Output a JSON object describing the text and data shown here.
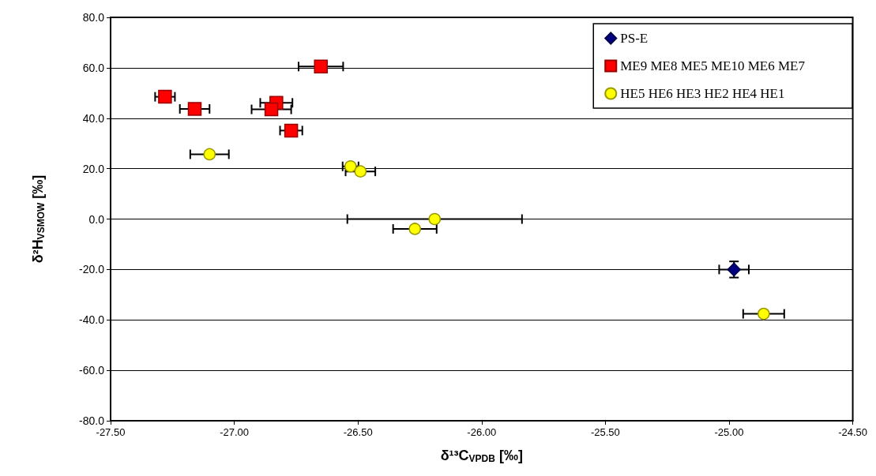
{
  "chart_data": {
    "type": "scatter",
    "xlabel": "δ¹³C$_{VPDB}$ [‰]",
    "ylabel": "δ²H$_{VSMOW}$ [‰]",
    "xlim": [
      -27.5,
      -24.5
    ],
    "xticks": [
      {
        "value": -27.5,
        "label": "-27.50"
      },
      {
        "value": -27,
        "label": "-27.00"
      },
      {
        "value": -26.5,
        "label": "-26.50"
      },
      {
        "value": -26,
        "label": "-26.00"
      },
      {
        "value": -25.5,
        "label": "-25.50"
      },
      {
        "value": -25,
        "label": "-25.00"
      },
      {
        "value": -24.5,
        "label": "-24.50"
      }
    ],
    "ylim": [
      -80,
      80
    ],
    "yticks": [
      {
        "value": -80,
        "label": "-80.0"
      },
      {
        "value": -60,
        "label": "-60.0"
      },
      {
        "value": -40,
        "label": "-40.0"
      },
      {
        "value": -20,
        "label": "-20.0"
      },
      {
        "value": 0,
        "label": "0.0"
      },
      {
        "value": 20,
        "label": "20.0"
      },
      {
        "value": 40,
        "label": "40.0"
      },
      {
        "value": 60,
        "label": "60.0"
      },
      {
        "value": 80,
        "label": "80.0"
      }
    ],
    "grid": "y",
    "legend": "top right",
    "series": [
      {
        "name": "PS-E",
        "color": "#000080",
        "marker": "diamond",
        "x": [
          -24.98
        ],
        "values": [
          -20
        ],
        "xerrors": [
          0.06
        ],
        "errors": [
          3.2
        ]
      },
      {
        "name": "ME9 ME8 ME5 ME10 ME6 ME7",
        "color": "#ff0000",
        "marker": "square",
        "x": [
          -26.65,
          -27.28,
          -27.16,
          -26.83,
          -26.85,
          -26.77
        ],
        "values": [
          60.5,
          48.5,
          43.7,
          46.1,
          43.5,
          35.1
        ],
        "xerrors": [
          0.09,
          0.04,
          0.06,
          0.065,
          0.08,
          0.045
        ]
      },
      {
        "name": "HE5 HE6 HE3 HE2 HE4 HE1",
        "color": "#ffff00",
        "marker": "circle",
        "x": [
          -27.1,
          -26.53,
          -26.49,
          -26.19,
          -26.27,
          -24.86
        ],
        "values": [
          25.7,
          20.9,
          18.9,
          0,
          -3.9,
          -37.6
        ],
        "xerrors": [
          0.078,
          0.032,
          0.06,
          0.353,
          0.088,
          0.083
        ]
      }
    ]
  }
}
